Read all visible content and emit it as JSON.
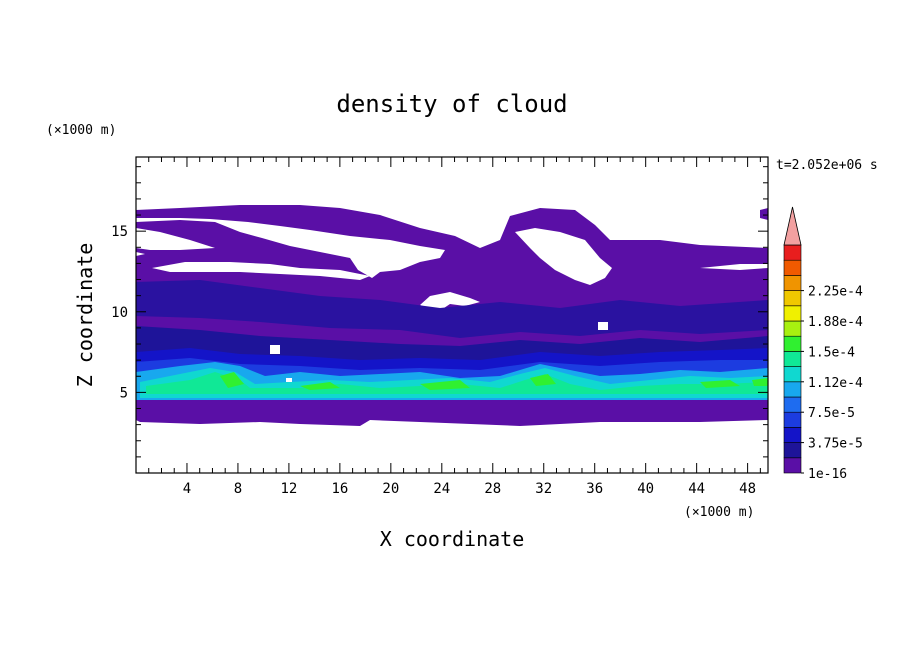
{
  "chart_data": {
    "type": "heatmap",
    "title": "density of cloud",
    "xlabel": "X coordinate",
    "ylabel": "Z coordinate",
    "x_unit": "(×1000 m)",
    "y_unit": "(×1000 m)",
    "time_label": "t=2.052e+06 s",
    "xlim": [
      0,
      49.6
    ],
    "ylim": [
      0,
      19.6
    ],
    "x_ticks": [
      "4",
      "8",
      "12",
      "16",
      "20",
      "24",
      "28",
      "32",
      "36",
      "40",
      "44",
      "48"
    ],
    "y_ticks": [
      "5",
      "10",
      "15"
    ],
    "x_tick_values": [
      4,
      8,
      12,
      16,
      20,
      24,
      28,
      32,
      36,
      40,
      44,
      48
    ],
    "y_tick_values": [
      5,
      10,
      15
    ],
    "colorbar": {
      "levels": [
        "1e-16",
        "3.75e-5",
        "7.5e-5",
        "1.12e-4",
        "1.5e-4",
        "1.88e-4",
        "2.25e-4"
      ],
      "colors": [
        "#5a0fa6",
        "#1e1499",
        "#1414c8",
        "#1c3ce0",
        "#1e6cf0",
        "#18a8ee",
        "#10d8d0",
        "#10e896",
        "#30f030",
        "#a8f010",
        "#f0f000",
        "#f0c800",
        "#f09400",
        "#f05a00",
        "#e81e1e",
        "#f2a0a0"
      ]
    }
  }
}
